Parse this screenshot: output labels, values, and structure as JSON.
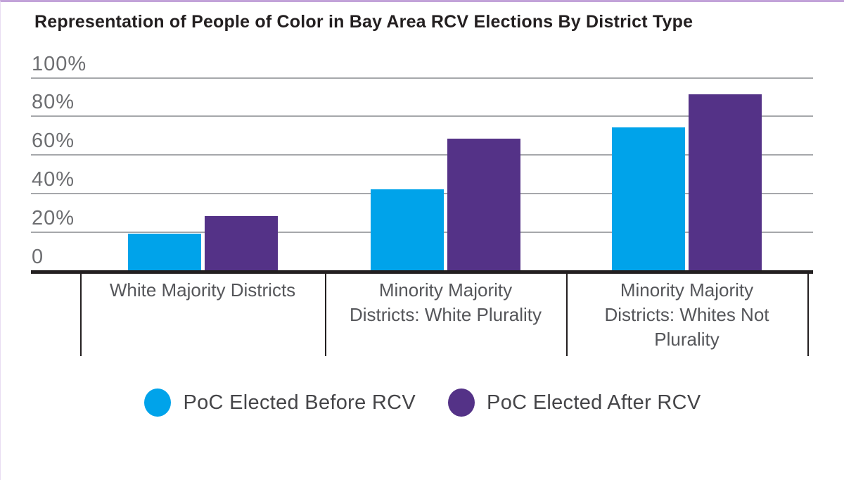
{
  "colors": {
    "before_rcv": "#00a3ea",
    "after_rcv": "#543287",
    "gridline": "#a6a8ab",
    "axis": "#231f20",
    "y_tick_label": "#6d6e71",
    "category_label": "#55565a",
    "legend_label": "#454548",
    "title": "#231f20",
    "card_top_border": "#c2a3d9"
  },
  "chart_data": {
    "type": "bar",
    "title": "Representation of People of Color in Bay Area RCV Elections By District Type",
    "categories": [
      "White Majority Districts",
      "Minority Majority Districts: White Plurality",
      "Minority Majority Districts: Whites Not Plurality"
    ],
    "category_label_lines": [
      [
        "White Majority Districts"
      ],
      [
        "Minority Majority",
        "Districts: White Plurality"
      ],
      [
        "Minority Majority",
        "Districts: Whites Not",
        "Plurality"
      ]
    ],
    "series": [
      {
        "name": "PoC Elected Before RCV",
        "color_key": "before_rcv",
        "values": [
          19,
          42,
          74
        ]
      },
      {
        "name": "PoC Elected After RCV",
        "color_key": "after_rcv",
        "values": [
          28,
          68,
          91
        ]
      }
    ],
    "ylabel": "",
    "xlabel": "",
    "ylim": [
      0,
      100
    ],
    "yticks": [
      0,
      20,
      40,
      60,
      80,
      100
    ],
    "y_tick_labels": [
      "0",
      "20%",
      "40%",
      "60%",
      "80%",
      "100%"
    ],
    "grid": true,
    "legend_position": "bottom"
  },
  "legend": {
    "items": [
      {
        "label": "PoC Elected Before RCV",
        "color_key": "before_rcv"
      },
      {
        "label": "PoC Elected After RCV",
        "color_key": "after_rcv"
      }
    ]
  }
}
